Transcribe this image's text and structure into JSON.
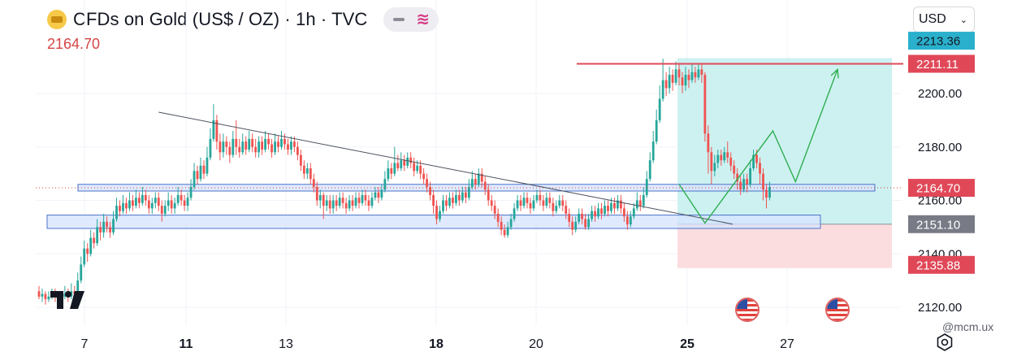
{
  "header": {
    "title": "CFDs on Gold (US$ / OZ) · 1h · TVC",
    "current_price": "2164.70",
    "currency": "USD",
    "watermark": "@mcm.ux"
  },
  "colors": {
    "up": "#26a69a",
    "down": "#ef5350",
    "resistance_line": "#e04858",
    "profit_zone": "#cdf1f1",
    "loss_zone": "#fbdde0",
    "support_zone_fill": "#d5e3ff",
    "support_zone_border": "#4a73c9",
    "trendline": "#4c525e",
    "projection": "#2fae50"
  },
  "chart_data": {
    "type": "candlestick",
    "symbol": "CFDs on Gold (US$ / OZ)",
    "timeframe": "1h",
    "ylim": [
      2116,
      2226
    ],
    "y_ticks": [
      2120,
      2140,
      2160,
      2180,
      2200
    ],
    "x_ticks": [
      "7",
      "11",
      "13",
      "18",
      "20",
      "25",
      "27"
    ],
    "x_ticks_bold": [
      "11",
      "18",
      "25"
    ],
    "price_labels": [
      {
        "text": "2213.36",
        "value": 2213.36,
        "style": "last-high"
      },
      {
        "text": "2211.11",
        "value": 2211.11,
        "style": "resistance"
      },
      {
        "text": "2164.70",
        "value": 2164.7,
        "style": "current"
      },
      {
        "text": "2151.10",
        "value": 2151.1,
        "style": "entry"
      },
      {
        "text": "2135.88",
        "value": 2135.88,
        "style": "stop"
      }
    ],
    "candles": [
      [
        2126,
        2124,
        2128,
        2123
      ],
      [
        2124,
        2125,
        2127,
        2122
      ],
      [
        2125,
        2123,
        2126,
        2121
      ],
      [
        2123,
        2124,
        2126,
        2122
      ],
      [
        2124,
        2125,
        2127,
        2123
      ],
      [
        2125,
        2124,
        2127,
        2122
      ],
      [
        2124,
        2123,
        2125,
        2121
      ],
      [
        2123,
        2124,
        2126,
        2121
      ],
      [
        2124,
        2125,
        2128,
        2123
      ],
      [
        2125,
        2124,
        2127,
        2122
      ],
      [
        2124,
        2126,
        2129,
        2123
      ],
      [
        2126,
        2125,
        2128,
        2124
      ],
      [
        2125,
        2130,
        2133,
        2124
      ],
      [
        2130,
        2136,
        2139,
        2129
      ],
      [
        2136,
        2142,
        2145,
        2135
      ],
      [
        2142,
        2140,
        2144,
        2137
      ],
      [
        2140,
        2146,
        2149,
        2139
      ],
      [
        2146,
        2144,
        2148,
        2142
      ],
      [
        2144,
        2150,
        2153,
        2143
      ],
      [
        2150,
        2148,
        2152,
        2145
      ],
      [
        2148,
        2152,
        2155,
        2146
      ],
      [
        2152,
        2150,
        2154,
        2148
      ],
      [
        2150,
        2148,
        2152,
        2146
      ],
      [
        2148,
        2153,
        2156,
        2147
      ],
      [
        2153,
        2158,
        2161,
        2152
      ],
      [
        2158,
        2156,
        2160,
        2154
      ],
      [
        2156,
        2159,
        2162,
        2155
      ],
      [
        2159,
        2157,
        2161,
        2155
      ],
      [
        2157,
        2160,
        2163,
        2156
      ],
      [
        2160,
        2158,
        2162,
        2156
      ],
      [
        2158,
        2161,
        2164,
        2157
      ],
      [
        2161,
        2159,
        2163,
        2157
      ],
      [
        2159,
        2162,
        2165,
        2158
      ],
      [
        2162,
        2160,
        2164,
        2158
      ],
      [
        2160,
        2157,
        2162,
        2155
      ],
      [
        2157,
        2159,
        2161,
        2155
      ],
      [
        2159,
        2161,
        2163,
        2157
      ],
      [
        2161,
        2158,
        2163,
        2156
      ],
      [
        2158,
        2155,
        2160,
        2152
      ],
      [
        2155,
        2158,
        2160,
        2154
      ],
      [
        2158,
        2160,
        2163,
        2156
      ],
      [
        2160,
        2157,
        2162,
        2155
      ],
      [
        2157,
        2159,
        2161,
        2155
      ],
      [
        2159,
        2162,
        2165,
        2158
      ],
      [
        2162,
        2160,
        2164,
        2158
      ],
      [
        2160,
        2158,
        2162,
        2156
      ],
      [
        2158,
        2161,
        2163,
        2156
      ],
      [
        2161,
        2165,
        2168,
        2160
      ],
      [
        2165,
        2171,
        2174,
        2164
      ],
      [
        2171,
        2168,
        2173,
        2166
      ],
      [
        2168,
        2173,
        2176,
        2167
      ],
      [
        2173,
        2170,
        2175,
        2168
      ],
      [
        2170,
        2176,
        2180,
        2169
      ],
      [
        2176,
        2183,
        2187,
        2175
      ],
      [
        2183,
        2190,
        2196,
        2182
      ],
      [
        2190,
        2182,
        2192,
        2179
      ],
      [
        2182,
        2178,
        2185,
        2175
      ],
      [
        2178,
        2182,
        2185,
        2176
      ],
      [
        2182,
        2180,
        2184,
        2177
      ],
      [
        2180,
        2177,
        2182,
        2174
      ],
      [
        2177,
        2183,
        2186,
        2176
      ],
      [
        2183,
        2180,
        2190,
        2177
      ],
      [
        2180,
        2178,
        2183,
        2176
      ],
      [
        2178,
        2182,
        2185,
        2177
      ],
      [
        2182,
        2179,
        2184,
        2177
      ],
      [
        2179,
        2183,
        2186,
        2178
      ],
      [
        2183,
        2180,
        2185,
        2178
      ],
      [
        2180,
        2178,
        2183,
        2176
      ],
      [
        2178,
        2182,
        2184,
        2176
      ],
      [
        2182,
        2179,
        2184,
        2177
      ],
      [
        2179,
        2183,
        2186,
        2178
      ],
      [
        2183,
        2181,
        2185,
        2179
      ],
      [
        2181,
        2178,
        2183,
        2176
      ],
      [
        2178,
        2182,
        2185,
        2177
      ],
      [
        2182,
        2180,
        2184,
        2178
      ],
      [
        2180,
        2183,
        2186,
        2179
      ],
      [
        2183,
        2181,
        2185,
        2179
      ],
      [
        2181,
        2179,
        2183,
        2177
      ],
      [
        2179,
        2182,
        2184,
        2177
      ],
      [
        2182,
        2180,
        2184,
        2178
      ],
      [
        2180,
        2177,
        2182,
        2175
      ],
      [
        2177,
        2173,
        2179,
        2171
      ],
      [
        2173,
        2170,
        2175,
        2168
      ],
      [
        2170,
        2172,
        2174,
        2168
      ],
      [
        2172,
        2168,
        2174,
        2166
      ],
      [
        2168,
        2165,
        2170,
        2163
      ],
      [
        2165,
        2160,
        2167,
        2158
      ],
      [
        2160,
        2162,
        2164,
        2157
      ],
      [
        2162,
        2158,
        2163,
        2153
      ],
      [
        2158,
        2160,
        2162,
        2156
      ],
      [
        2160,
        2157,
        2162,
        2155
      ],
      [
        2157,
        2160,
        2162,
        2155
      ],
      [
        2160,
        2158,
        2162,
        2156
      ],
      [
        2158,
        2161,
        2163,
        2157
      ],
      [
        2161,
        2159,
        2163,
        2157
      ],
      [
        2159,
        2157,
        2161,
        2155
      ],
      [
        2157,
        2160,
        2162,
        2156
      ],
      [
        2160,
        2158,
        2162,
        2156
      ],
      [
        2158,
        2161,
        2163,
        2157
      ],
      [
        2161,
        2159,
        2163,
        2157
      ],
      [
        2159,
        2162,
        2164,
        2158
      ],
      [
        2162,
        2160,
        2164,
        2158
      ],
      [
        2160,
        2158,
        2162,
        2156
      ],
      [
        2158,
        2161,
        2163,
        2157
      ],
      [
        2161,
        2163,
        2165,
        2160
      ],
      [
        2163,
        2161,
        2165,
        2159
      ],
      [
        2161,
        2164,
        2166,
        2160
      ],
      [
        2164,
        2168,
        2171,
        2163
      ],
      [
        2168,
        2172,
        2175,
        2167
      ],
      [
        2172,
        2170,
        2174,
        2168
      ],
      [
        2170,
        2174,
        2180,
        2169
      ],
      [
        2174,
        2172,
        2177,
        2171
      ],
      [
        2172,
        2175,
        2178,
        2171
      ],
      [
        2175,
        2173,
        2177,
        2171
      ],
      [
        2173,
        2176,
        2178,
        2172
      ],
      [
        2176,
        2174,
        2178,
        2172
      ],
      [
        2174,
        2171,
        2176,
        2169
      ],
      [
        2171,
        2173,
        2175,
        2170
      ],
      [
        2173,
        2170,
        2175,
        2168
      ],
      [
        2170,
        2168,
        2172,
        2166
      ],
      [
        2168,
        2165,
        2170,
        2163
      ],
      [
        2165,
        2162,
        2167,
        2160
      ],
      [
        2162,
        2158,
        2164,
        2155
      ],
      [
        2158,
        2153,
        2160,
        2151
      ],
      [
        2153,
        2156,
        2158,
        2152
      ],
      [
        2156,
        2160,
        2162,
        2155
      ],
      [
        2160,
        2158,
        2162,
        2156
      ],
      [
        2158,
        2161,
        2163,
        2157
      ],
      [
        2161,
        2159,
        2163,
        2157
      ],
      [
        2159,
        2162,
        2164,
        2158
      ],
      [
        2162,
        2160,
        2164,
        2158
      ],
      [
        2160,
        2163,
        2165,
        2159
      ],
      [
        2163,
        2161,
        2165,
        2159
      ],
      [
        2161,
        2165,
        2168,
        2160
      ],
      [
        2165,
        2168,
        2171,
        2164
      ],
      [
        2168,
        2166,
        2170,
        2164
      ],
      [
        2166,
        2170,
        2172,
        2165
      ],
      [
        2170,
        2167,
        2172,
        2165
      ],
      [
        2167,
        2164,
        2169,
        2162
      ],
      [
        2164,
        2160,
        2166,
        2158
      ],
      [
        2160,
        2158,
        2162,
        2156
      ],
      [
        2158,
        2155,
        2160,
        2153
      ],
      [
        2155,
        2152,
        2157,
        2150
      ],
      [
        2152,
        2149,
        2154,
        2147
      ],
      [
        2149,
        2147,
        2151,
        2146
      ],
      [
        2147,
        2150,
        2152,
        2146
      ],
      [
        2150,
        2153,
        2155,
        2149
      ],
      [
        2153,
        2157,
        2159,
        2152
      ],
      [
        2157,
        2160,
        2162,
        2156
      ],
      [
        2160,
        2158,
        2162,
        2156
      ],
      [
        2158,
        2161,
        2163,
        2157
      ],
      [
        2161,
        2159,
        2163,
        2157
      ],
      [
        2159,
        2157,
        2161,
        2155
      ],
      [
        2157,
        2160,
        2162,
        2156
      ],
      [
        2160,
        2162,
        2164,
        2159
      ],
      [
        2162,
        2160,
        2164,
        2158
      ],
      [
        2160,
        2158,
        2162,
        2156
      ],
      [
        2158,
        2161,
        2163,
        2157
      ],
      [
        2161,
        2159,
        2163,
        2157
      ],
      [
        2159,
        2156,
        2161,
        2154
      ],
      [
        2156,
        2158,
        2160,
        2155
      ],
      [
        2158,
        2160,
        2162,
        2157
      ],
      [
        2160,
        2158,
        2162,
        2156
      ],
      [
        2158,
        2155,
        2160,
        2153
      ],
      [
        2155,
        2152,
        2157,
        2150
      ],
      [
        2152,
        2149,
        2154,
        2147
      ],
      [
        2149,
        2152,
        2154,
        2148
      ],
      [
        2152,
        2155,
        2157,
        2151
      ],
      [
        2155,
        2153,
        2157,
        2151
      ],
      [
        2153,
        2150,
        2155,
        2149
      ],
      [
        2150,
        2153,
        2155,
        2149
      ],
      [
        2153,
        2156,
        2158,
        2152
      ],
      [
        2156,
        2154,
        2158,
        2152
      ],
      [
        2154,
        2157,
        2159,
        2153
      ],
      [
        2157,
        2155,
        2159,
        2153
      ],
      [
        2155,
        2158,
        2160,
        2154
      ],
      [
        2158,
        2156,
        2160,
        2154
      ],
      [
        2156,
        2159,
        2161,
        2155
      ],
      [
        2159,
        2157,
        2161,
        2155
      ],
      [
        2157,
        2160,
        2162,
        2156
      ],
      [
        2160,
        2157,
        2162,
        2155
      ],
      [
        2157,
        2154,
        2159,
        2152
      ],
      [
        2154,
        2151,
        2156,
        2149
      ],
      [
        2151,
        2154,
        2156,
        2150
      ],
      [
        2154,
        2157,
        2159,
        2153
      ],
      [
        2157,
        2160,
        2163,
        2156
      ],
      [
        2160,
        2158,
        2162,
        2156
      ],
      [
        2158,
        2162,
        2165,
        2157
      ],
      [
        2162,
        2168,
        2171,
        2161
      ],
      [
        2168,
        2175,
        2178,
        2167
      ],
      [
        2175,
        2182,
        2186,
        2174
      ],
      [
        2182,
        2190,
        2194,
        2181
      ],
      [
        2190,
        2198,
        2203,
        2189
      ],
      [
        2198,
        2205,
        2213,
        2197
      ],
      [
        2205,
        2202,
        2208,
        2199
      ],
      [
        2202,
        2207,
        2210,
        2200
      ],
      [
        2207,
        2204,
        2209,
        2201
      ],
      [
        2204,
        2209,
        2212,
        2203
      ],
      [
        2209,
        2206,
        2211,
        2203
      ],
      [
        2206,
        2203,
        2208,
        2200
      ],
      [
        2203,
        2207,
        2210,
        2201
      ],
      [
        2207,
        2205,
        2209,
        2202
      ],
      [
        2205,
        2208,
        2211,
        2204
      ],
      [
        2208,
        2206,
        2210,
        2204
      ],
      [
        2206,
        2209,
        2211,
        2205
      ],
      [
        2209,
        2207,
        2211,
        2204
      ],
      [
        2207,
        2185,
        2208,
        2182
      ],
      [
        2185,
        2178,
        2188,
        2170
      ],
      [
        2178,
        2171,
        2180,
        2166
      ],
      [
        2171,
        2174,
        2177,
        2169
      ],
      [
        2174,
        2177,
        2179,
        2172
      ],
      [
        2177,
        2175,
        2179,
        2173
      ],
      [
        2175,
        2178,
        2180,
        2174
      ],
      [
        2178,
        2176,
        2182,
        2174
      ],
      [
        2176,
        2173,
        2178,
        2171
      ],
      [
        2173,
        2170,
        2175,
        2168
      ],
      [
        2170,
        2167,
        2172,
        2164
      ],
      [
        2167,
        2164,
        2169,
        2162
      ],
      [
        2164,
        2168,
        2170,
        2163
      ],
      [
        2168,
        2166,
        2170,
        2163
      ],
      [
        2166,
        2172,
        2175,
        2165
      ],
      [
        2172,
        2177,
        2179,
        2171
      ],
      [
        2177,
        2174,
        2179,
        2172
      ],
      [
        2174,
        2170,
        2176,
        2166
      ],
      [
        2170,
        2164,
        2172,
        2160
      ],
      [
        2164,
        2161,
        2166,
        2157
      ],
      [
        2161,
        2165,
        2167,
        2160
      ]
    ],
    "levels": {
      "resistance": 2211.11,
      "support_upper": {
        "top": 2166,
        "bottom": 2163.5
      },
      "support_lower": {
        "top": 2154.5,
        "bottom": 2149.5
      },
      "profit_target": 2211.11,
      "entry": 2151.1,
      "stop": 2135.88
    },
    "trendline": [
      {
        "candle": 37,
        "value": 2193
      },
      {
        "candle": 197,
        "value": 2150.5
      }
    ],
    "projection_path": [
      {
        "candle": 198,
        "value": 2166
      },
      {
        "candle": 206,
        "value": 2151.5
      },
      {
        "candle": 227,
        "value": 2186
      },
      {
        "candle": 234,
        "value": 2167
      },
      {
        "candle": 247,
        "value": 2209
      }
    ],
    "position_box": {
      "candle_start": 198,
      "candle_end": 262
    },
    "event_markers": [
      {
        "candle": 219,
        "icon": "us-flag-icon"
      },
      {
        "candle": 247,
        "icon": "us-flag-icon"
      }
    ]
  }
}
